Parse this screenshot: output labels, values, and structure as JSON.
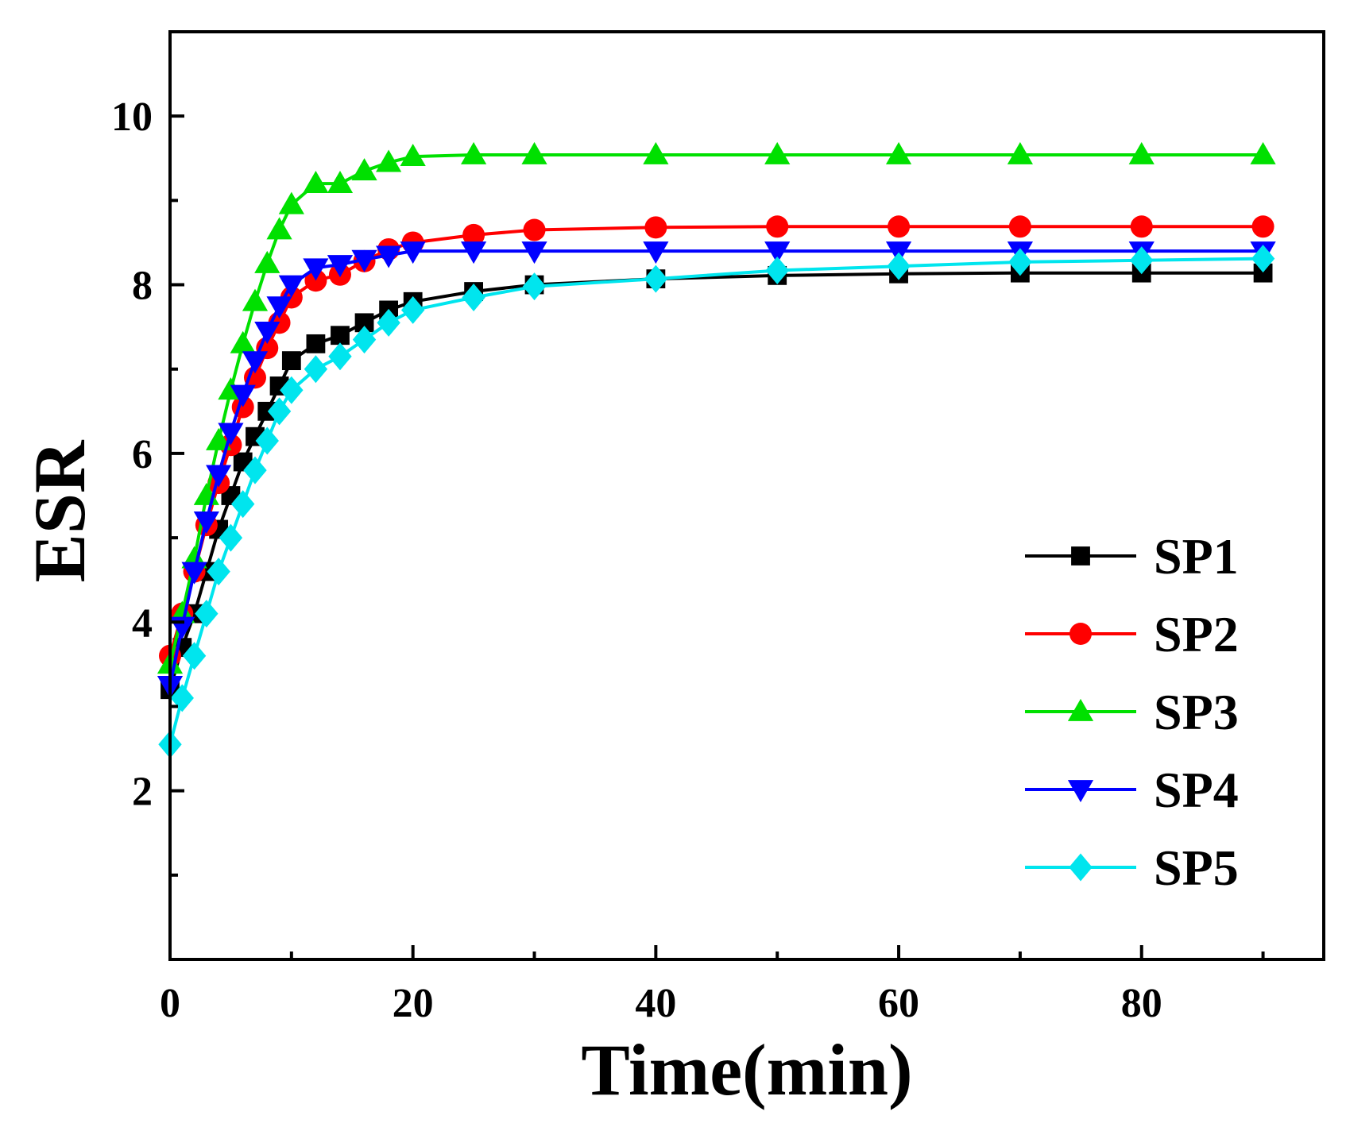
{
  "chart_data": {
    "type": "line",
    "title": "",
    "xlabel": "Time(min)",
    "ylabel": "ESR",
    "xlim": [
      0,
      95
    ],
    "ylim": [
      0,
      11
    ],
    "x_ticks": [
      0,
      20,
      40,
      60,
      80
    ],
    "x_tick_labels": [
      "0",
      "20",
      "40",
      "60",
      "80"
    ],
    "y_ticks": [
      2,
      4,
      6,
      8,
      10
    ],
    "y_tick_labels": [
      "2",
      "4",
      "6",
      "8",
      "10"
    ],
    "x_minor_ticks": [
      10,
      30,
      50,
      70,
      90
    ],
    "y_minor_ticks": [
      1,
      3,
      5,
      7,
      9
    ],
    "grid": false,
    "legend_position": "right",
    "series": [
      {
        "name": "SP1",
        "color": "#000000",
        "marker": "square",
        "x": [
          0,
          1,
          2,
          3,
          4,
          5,
          6,
          7,
          8,
          9,
          10,
          12,
          14,
          16,
          18,
          20,
          25,
          30,
          40,
          50,
          60,
          70,
          80,
          90
        ],
        "y": [
          3.2,
          3.7,
          4.1,
          4.6,
          5.1,
          5.5,
          5.9,
          6.2,
          6.5,
          6.8,
          7.1,
          7.3,
          7.4,
          7.55,
          7.7,
          7.8,
          7.92,
          8.0,
          8.07,
          8.11,
          8.13,
          8.14,
          8.14,
          8.14
        ]
      },
      {
        "name": "SP2",
        "color": "#ff0000",
        "marker": "circle",
        "x": [
          0,
          1,
          2,
          3,
          4,
          5,
          6,
          7,
          8,
          9,
          10,
          12,
          14,
          16,
          18,
          20,
          25,
          30,
          40,
          50,
          60,
          70,
          80,
          90
        ],
        "y": [
          3.6,
          4.1,
          4.6,
          5.15,
          5.65,
          6.1,
          6.55,
          6.9,
          7.25,
          7.55,
          7.85,
          8.05,
          8.12,
          8.28,
          8.42,
          8.5,
          8.59,
          8.65,
          8.68,
          8.69,
          8.69,
          8.69,
          8.69,
          8.69
        ]
      },
      {
        "name": "SP3",
        "color": "#00e000",
        "marker": "triangle-up",
        "x": [
          0,
          1,
          2,
          3,
          4,
          5,
          6,
          7,
          8,
          9,
          10,
          12,
          14,
          16,
          18,
          20,
          25,
          30,
          40,
          50,
          60,
          70,
          80,
          90
        ],
        "y": [
          3.5,
          4.1,
          4.75,
          5.5,
          6.15,
          6.75,
          7.3,
          7.8,
          8.25,
          8.65,
          8.95,
          9.2,
          9.2,
          9.35,
          9.45,
          9.52,
          9.54,
          9.54,
          9.54,
          9.54,
          9.54,
          9.54,
          9.54,
          9.54
        ]
      },
      {
        "name": "SP4",
        "color": "#0000ff",
        "marker": "triangle-down",
        "x": [
          0,
          1,
          2,
          3,
          4,
          5,
          6,
          7,
          8,
          9,
          10,
          12,
          14,
          16,
          18,
          20,
          25,
          30,
          40,
          50,
          60,
          70,
          80,
          90
        ],
        "y": [
          3.25,
          3.95,
          4.6,
          5.2,
          5.75,
          6.25,
          6.7,
          7.1,
          7.45,
          7.75,
          8.0,
          8.2,
          8.24,
          8.3,
          8.35,
          8.4,
          8.4,
          8.4,
          8.4,
          8.4,
          8.4,
          8.4,
          8.4,
          8.4
        ]
      },
      {
        "name": "SP5",
        "color": "#00e5ee",
        "marker": "diamond",
        "x": [
          0,
          1,
          2,
          3,
          4,
          5,
          6,
          7,
          8,
          9,
          10,
          12,
          14,
          16,
          18,
          20,
          25,
          30,
          40,
          50,
          60,
          70,
          80,
          90
        ],
        "y": [
          2.55,
          3.1,
          3.6,
          4.1,
          4.6,
          5.0,
          5.4,
          5.8,
          6.15,
          6.5,
          6.75,
          7.0,
          7.15,
          7.35,
          7.55,
          7.7,
          7.85,
          7.98,
          8.07,
          8.17,
          8.22,
          8.27,
          8.29,
          8.31
        ]
      }
    ]
  }
}
